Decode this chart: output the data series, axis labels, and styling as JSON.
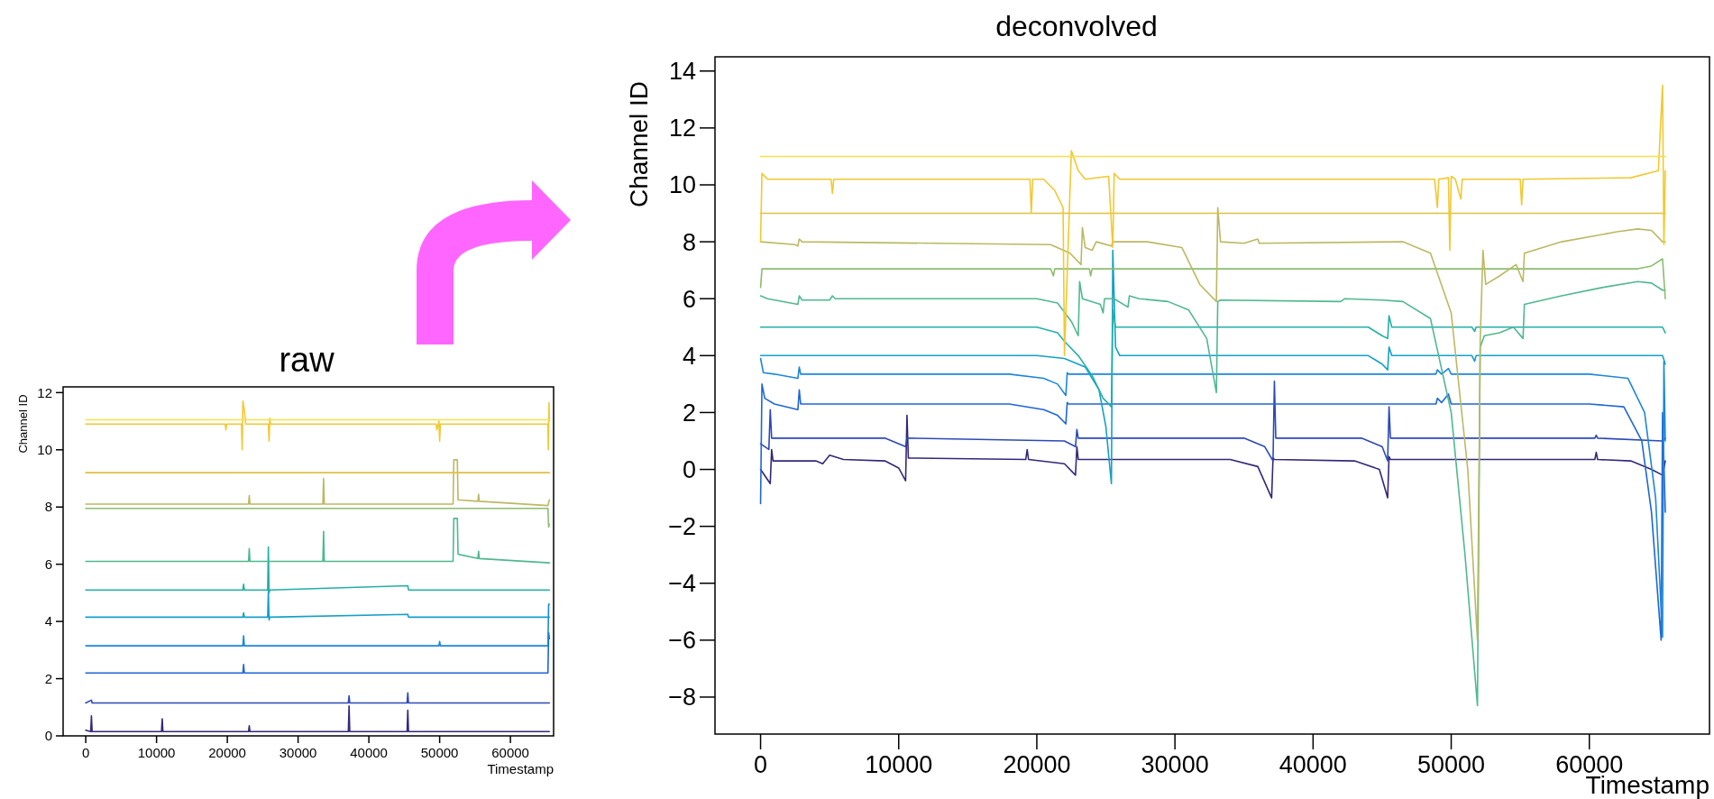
{
  "chart_data": [
    {
      "type": "line",
      "title": "raw",
      "xlabel": "Timestamp",
      "ylabel": "Channel ID",
      "xlim": [
        -3200,
        66100
      ],
      "ylim": [
        0,
        12.2
      ],
      "xticks": [
        0,
        10000,
        20000,
        30000,
        40000,
        50000,
        60000
      ],
      "yticks": [
        0,
        2,
        4,
        6,
        8,
        10,
        12
      ],
      "series": [
        {
          "color": "#35287a",
          "x": [
            0,
            700,
            800,
            900,
            10700,
            10800,
            10900,
            23000,
            23100,
            23200,
            37100,
            37200,
            37300,
            45400,
            45500,
            45600,
            65500
          ],
          "values": [
            0.2,
            0.15,
            0.7,
            0.15,
            0.15,
            0.6,
            0.15,
            0.15,
            0.35,
            0.15,
            0.15,
            1.05,
            0.15,
            0.15,
            0.9,
            0.15,
            0.15
          ]
        },
        {
          "color": "#2c49b8",
          "x": [
            0,
            800,
            900,
            37100,
            37200,
            37300,
            45400,
            45500,
            45600,
            65500
          ],
          "values": [
            1.15,
            1.25,
            1.15,
            1.15,
            1.4,
            1.15,
            1.15,
            1.5,
            1.15,
            1.15
          ]
        },
        {
          "color": "#1f66d6",
          "x": [
            0,
            22200,
            22300,
            22400,
            65300,
            65400,
            65500
          ],
          "values": [
            2.2,
            2.2,
            2.5,
            2.2,
            2.2,
            3.6,
            3.4
          ]
        },
        {
          "color": "#1c86dc",
          "x": [
            0,
            22200,
            22300,
            22400,
            49900,
            50000,
            50100,
            65300,
            65400,
            65500
          ],
          "values": [
            3.15,
            3.15,
            3.5,
            3.15,
            3.15,
            3.3,
            3.15,
            3.15,
            4.6,
            4.6
          ]
        },
        {
          "color": "#14a0c8",
          "x": [
            0,
            22200,
            22300,
            22400,
            25700,
            25800,
            25900,
            26000,
            45500,
            45600,
            65500
          ],
          "values": [
            4.15,
            4.15,
            4.3,
            4.15,
            4.15,
            5.1,
            4.05,
            4.15,
            4.25,
            4.15,
            4.15
          ]
        },
        {
          "color": "#22b0a6",
          "x": [
            0,
            22200,
            22300,
            22400,
            25700,
            25800,
            25900,
            26000,
            45500,
            45600,
            65500
          ],
          "values": [
            5.1,
            5.1,
            5.3,
            5.1,
            5.1,
            6.6,
            5.0,
            5.1,
            5.25,
            5.1,
            5.1
          ]
        },
        {
          "color": "#4fb890",
          "x": [
            0,
            23000,
            23100,
            23200,
            33500,
            33600,
            33700,
            51900,
            52000,
            52500,
            52600,
            55400,
            55500,
            55600,
            65500
          ],
          "values": [
            6.1,
            6.1,
            6.55,
            6.1,
            6.1,
            7.15,
            6.1,
            6.1,
            7.6,
            7.6,
            6.35,
            6.2,
            6.45,
            6.2,
            6.05
          ]
        },
        {
          "color": "#8cbc70",
          "x": [
            0,
            65300,
            65400,
            65500
          ],
          "values": [
            7.95,
            7.95,
            7.3,
            7.4
          ]
        },
        {
          "color": "#bcb862",
          "x": [
            0,
            23000,
            23100,
            23200,
            33500,
            33600,
            33700,
            51900,
            52000,
            52500,
            52600,
            55400,
            55500,
            55600,
            65300,
            65500
          ],
          "values": [
            8.1,
            8.1,
            8.4,
            8.1,
            8.1,
            9.0,
            8.1,
            8.1,
            9.65,
            9.65,
            8.25,
            8.2,
            8.45,
            8.2,
            8.05,
            8.25
          ]
        },
        {
          "color": "#e0c040",
          "x": [
            0,
            65500
          ],
          "values": [
            9.2,
            9.2
          ]
        },
        {
          "color": "#f2c830",
          "x": [
            0,
            19700,
            19800,
            19900,
            22000,
            22100,
            22200,
            22400,
            22600,
            25800,
            25900,
            26000,
            26100,
            49500,
            49600,
            49900,
            50000,
            50100,
            65300,
            65350,
            65450,
            65500
          ],
          "values": [
            10.9,
            10.9,
            10.7,
            10.9,
            10.9,
            10.0,
            11.7,
            11.4,
            10.9,
            10.9,
            10.3,
            11.1,
            10.9,
            10.9,
            10.7,
            11.0,
            10.3,
            10.9,
            10.9,
            10.0,
            11.65,
            11.0
          ]
        },
        {
          "color": "#f8e048",
          "x": [
            0,
            65500
          ],
          "values": [
            11.05,
            11.05
          ]
        }
      ]
    },
    {
      "type": "line",
      "title": "deconvolved",
      "xlabel": "Timestamp",
      "ylabel": "Channel ID",
      "xlim": [
        -3300,
        68700
      ],
      "ylim": [
        -9.3,
        14.5
      ],
      "xticks": [
        0,
        10000,
        20000,
        30000,
        40000,
        50000,
        60000
      ],
      "yticks": [
        -8,
        -6,
        -4,
        -2,
        0,
        2,
        4,
        6,
        8,
        10,
        12,
        14
      ],
      "series": [
        {
          "color": "#35287a",
          "x": [
            0,
            700,
            800,
            900,
            4000,
            4500,
            5000,
            6000,
            9000,
            10000,
            10500,
            10600,
            10700,
            19200,
            19300,
            19400,
            22000,
            22800,
            22900,
            23000,
            34000,
            36000,
            37000,
            37100,
            37200,
            43000,
            44800,
            45400,
            45500,
            45600,
            60400,
            60500,
            60600,
            63000,
            64500,
            65300,
            65500
          ],
          "values": [
            0,
            -0.5,
            0.7,
            0.3,
            0.3,
            0.2,
            0.5,
            0.35,
            0.3,
            0.05,
            -0.4,
            1.9,
            0.4,
            0.35,
            0.7,
            0.35,
            0.2,
            -0.2,
            0.8,
            0.35,
            0.35,
            0.1,
            -1.0,
            0.4,
            0.35,
            0.3,
            0.0,
            -1.0,
            0.45,
            0.35,
            0.35,
            0.6,
            0.35,
            0.3,
            0.0,
            -0.2,
            0.3
          ]
        },
        {
          "color": "#2c49b8",
          "x": [
            0,
            600,
            700,
            800,
            9000,
            10500,
            10600,
            22000,
            22800,
            22900,
            23000,
            35000,
            36500,
            37100,
            37200,
            37300,
            43500,
            45000,
            45400,
            45500,
            45600,
            60400,
            60500,
            60600,
            65300,
            65500
          ],
          "values": [
            0.9,
            0.7,
            2.1,
            1.1,
            1.1,
            0.8,
            1.1,
            1.0,
            0.8,
            1.4,
            1.1,
            1.1,
            0.8,
            0.3,
            3.1,
            1.1,
            1.1,
            0.8,
            0.3,
            2.2,
            1.1,
            1.1,
            1.2,
            1.1,
            1.0,
            1.1
          ]
        },
        {
          "color": "#1f66d6",
          "x": [
            0,
            100,
            300,
            1000,
            2700,
            2800,
            2900,
            18000,
            20500,
            21500,
            22100,
            22200,
            22300,
            48900,
            49000,
            49300,
            49800,
            50000,
            60000,
            62500,
            63800,
            64500,
            65200,
            65300,
            65500
          ],
          "values": [
            -1.2,
            3.0,
            2.5,
            2.3,
            2.1,
            2.8,
            2.3,
            2.3,
            2.1,
            1.9,
            1.6,
            2.35,
            2.3,
            2.3,
            2.5,
            2.35,
            2.65,
            2.3,
            2.3,
            2.2,
            1.0,
            -1.5,
            -6.0,
            2.0,
            -1.5
          ]
        },
        {
          "color": "#1c86dc",
          "x": [
            0,
            200,
            1000,
            2700,
            2800,
            2900,
            18000,
            20500,
            21500,
            22100,
            22200,
            22300,
            48900,
            49000,
            49300,
            49800,
            50000,
            60000,
            62800,
            64000,
            64800,
            65300,
            65400,
            65500
          ],
          "values": [
            3.9,
            3.4,
            3.35,
            3.2,
            3.6,
            3.35,
            3.35,
            3.2,
            3.0,
            2.6,
            3.4,
            3.35,
            3.35,
            3.5,
            3.35,
            3.55,
            3.35,
            3.35,
            3.2,
            2.0,
            -1.0,
            -5.9,
            3.8,
            1.0
          ]
        },
        {
          "color": "#14a0c8",
          "x": [
            0,
            20000,
            22000,
            23500,
            24500,
            25000,
            25400,
            25500,
            25700,
            26000,
            44000,
            45000,
            45400,
            45500,
            45700,
            51500,
            51700,
            51800,
            65300,
            65500
          ],
          "values": [
            4.0,
            4.0,
            3.9,
            3.6,
            2.8,
            1.5,
            -0.5,
            7.7,
            4.3,
            4.0,
            4.0,
            3.7,
            3.5,
            4.3,
            4.0,
            4.0,
            3.8,
            4.0,
            4.0,
            3.7
          ]
        },
        {
          "color": "#22b0a6",
          "x": [
            0,
            20000,
            21500,
            22000,
            23000,
            24000,
            24800,
            25400,
            25500,
            25700,
            44000,
            45000,
            45400,
            45500,
            45700,
            51500,
            51700,
            51800,
            65300,
            65500
          ],
          "values": [
            5.0,
            5.0,
            4.8,
            4.5,
            4.0,
            3.3,
            2.5,
            2.2,
            5.6,
            5.0,
            5.0,
            4.7,
            4.6,
            5.4,
            5.0,
            5.0,
            4.85,
            5.0,
            5.0,
            4.8
          ]
        },
        {
          "color": "#4fb890",
          "x": [
            0,
            500,
            2700,
            2800,
            3000,
            5000,
            5200,
            5400,
            20000,
            21500,
            22500,
            23000,
            23100,
            23300,
            24600,
            24800,
            24900,
            25600,
            26600,
            26700,
            27400,
            29500,
            31000,
            32300,
            33000,
            33100,
            33300,
            42000,
            42300,
            45000,
            46500,
            48500,
            50000,
            51000,
            51900,
            52100,
            52400,
            53500,
            54500,
            55200,
            55300,
            58000,
            61000,
            63500,
            64500,
            65300,
            65500
          ],
          "values": [
            6.1,
            6.0,
            5.8,
            6.1,
            5.95,
            5.95,
            6.1,
            6.0,
            6.0,
            5.85,
            5.2,
            4.7,
            6.6,
            6.0,
            5.8,
            5.5,
            6.0,
            6.0,
            5.7,
            6.1,
            6.0,
            5.9,
            5.6,
            4.6,
            2.7,
            5.9,
            5.95,
            5.9,
            6.0,
            5.95,
            5.9,
            5.3,
            2.0,
            -3.0,
            -8.3,
            4.3,
            4.7,
            4.8,
            5.0,
            4.6,
            5.8,
            6.1,
            6.4,
            6.6,
            6.55,
            6.3,
            6.3
          ]
        },
        {
          "color": "#8cbc70",
          "x": [
            0,
            100,
            21000,
            21200,
            21300,
            23800,
            23900,
            24000,
            63500,
            64500,
            65300,
            65500
          ],
          "values": [
            6.4,
            7.05,
            7.05,
            6.8,
            7.05,
            7.05,
            6.8,
            7.05,
            7.05,
            7.15,
            7.4,
            6.0
          ]
        },
        {
          "color": "#bcb862",
          "x": [
            0,
            2500,
            2700,
            2800,
            3000,
            21000,
            22400,
            23200,
            23300,
            23500,
            24000,
            24300,
            25400,
            25500,
            28000,
            30500,
            31800,
            33000,
            33100,
            33300,
            35000,
            36000,
            36100,
            46500,
            48500,
            50000,
            51200,
            51900,
            52100,
            52300,
            52500,
            53500,
            54700,
            55200,
            55300,
            58000,
            62000,
            63500,
            64500,
            65300,
            65500
          ],
          "values": [
            8.0,
            7.9,
            7.85,
            8.1,
            8.0,
            7.9,
            7.6,
            7.2,
            8.5,
            7.8,
            7.7,
            8.0,
            7.85,
            8.0,
            8.0,
            7.8,
            6.5,
            5.9,
            9.2,
            8.0,
            7.95,
            8.1,
            7.95,
            8.0,
            7.6,
            5.5,
            0,
            -6.0,
            4.5,
            7.7,
            6.5,
            6.8,
            7.2,
            6.6,
            7.6,
            8.0,
            8.35,
            8.45,
            8.4,
            8.0,
            8.0
          ]
        },
        {
          "color": "#e0c040",
          "x": [
            0,
            65500
          ],
          "values": [
            9.0,
            9.0
          ]
        },
        {
          "color": "#f2c830",
          "x": [
            0,
            100,
            500,
            5100,
            5200,
            5300,
            19500,
            19600,
            19700,
            20500,
            21300,
            21900,
            22000,
            22500,
            23000,
            23500,
            25200,
            25500,
            25600,
            26000,
            48800,
            49000,
            49100,
            49800,
            49900,
            50000,
            50300,
            50700,
            50800,
            55000,
            55100,
            55200,
            63000,
            65000,
            65300,
            65400,
            65500
          ],
          "values": [
            8.0,
            10.4,
            10.2,
            10.2,
            9.7,
            10.2,
            10.2,
            9.0,
            10.2,
            10.2,
            9.8,
            9.2,
            4.0,
            11.2,
            10.5,
            10.2,
            10.3,
            7.8,
            10.4,
            10.2,
            10.2,
            9.2,
            10.2,
            10.25,
            7.7,
            10.3,
            10.2,
            9.5,
            10.2,
            10.2,
            9.3,
            10.2,
            10.25,
            10.5,
            13.5,
            7.9,
            10.5
          ]
        },
        {
          "color": "#f8e048",
          "x": [
            0,
            65500
          ],
          "values": [
            11.0,
            11.0
          ]
        }
      ]
    }
  ]
}
